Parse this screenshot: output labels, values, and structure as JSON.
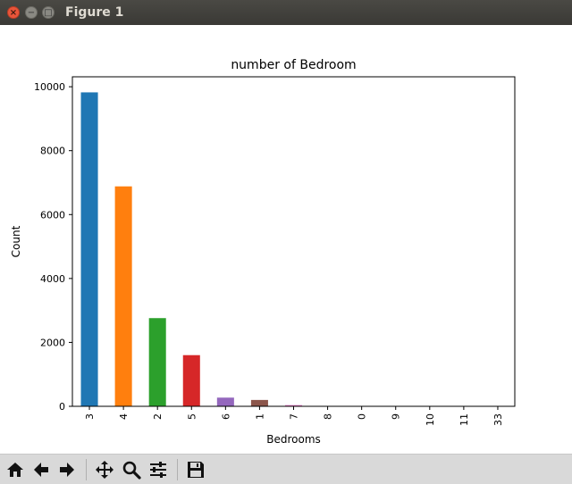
{
  "window": {
    "title": "Figure 1",
    "close_glyph": "×",
    "min_glyph": "−",
    "max_glyph": "□"
  },
  "toolbar": {
    "buttons": [
      {
        "name": "home-icon"
      },
      {
        "name": "back-arrow-icon"
      },
      {
        "name": "forward-arrow-icon"
      },
      {
        "name": "pan-icon"
      },
      {
        "name": "zoom-icon"
      },
      {
        "name": "subplots-config-icon"
      },
      {
        "name": "save-icon"
      }
    ]
  },
  "chart_data": {
    "type": "bar",
    "title": "number of Bedroom",
    "xlabel": "Bedrooms",
    "ylabel": "Count",
    "categories": [
      "3",
      "4",
      "2",
      "5",
      "6",
      "1",
      "7",
      "8",
      "0",
      "9",
      "10",
      "11",
      "33"
    ],
    "values": [
      9824,
      6882,
      2760,
      1601,
      272,
      199,
      38,
      13,
      13,
      6,
      3,
      1,
      1
    ],
    "colors": [
      "#1f77b4",
      "#ff7f0e",
      "#2ca02c",
      "#d62728",
      "#9467bd",
      "#8c564b",
      "#e377c2",
      "#7f7f7f",
      "#bcbd22",
      "#17becf",
      "#1f77b4",
      "#ff7f0e",
      "#2ca02c"
    ],
    "ylim": [
      0,
      10311
    ],
    "yticks": [
      0,
      2000,
      4000,
      6000,
      8000,
      10000
    ],
    "ytick_labels": [
      "0",
      "2000",
      "4000",
      "6000",
      "8000",
      "10000"
    ],
    "grid": false,
    "legend": "none"
  }
}
